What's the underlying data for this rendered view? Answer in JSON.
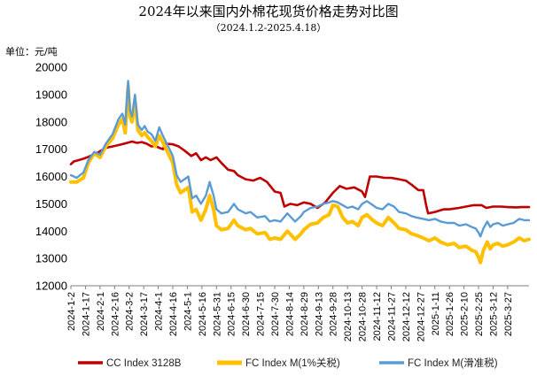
{
  "chart_data": {
    "type": "line",
    "title": "2024年以来国内外棉花现货价格走势对比图",
    "subtitle": "（2024.1.2-2025.4.18）",
    "unit_label": "单位：元/吨",
    "ylim": [
      12000,
      20000
    ],
    "y_ticks": [
      "20000",
      "19000",
      "18000",
      "17000",
      "16000",
      "15000",
      "14000",
      "13000",
      "12000"
    ],
    "y_tick_values": [
      20000,
      19000,
      18000,
      17000,
      16000,
      15000,
      14000,
      13000,
      12000
    ],
    "x_tick_labels": [
      "2024-1-2",
      "2024-1-17",
      "2024-2-1",
      "2024-2-16",
      "2024-3-2",
      "2024-3-17",
      "2024-4-1",
      "2024-4-16",
      "2024-5-1",
      "2024-5-16",
      "2024-5-31",
      "2024-6-15",
      "2024-6-30",
      "2024-7-15",
      "2024-7-30",
      "2024-8-14",
      "2024-8-29",
      "2024-9-13",
      "2024-9-28",
      "2024-10-13",
      "2024-10-28",
      "2024-11-12",
      "2024-11-27",
      "2024-12-12",
      "2024-12-27",
      "2025-1-11",
      "2025-1-26",
      "2025-2-10",
      "2025-2-25",
      "2025-3-12",
      "2025-3-27"
    ],
    "x_start": "2024-01-02",
    "x_end": "2025-04-18",
    "grid": false,
    "legend_position": "bottom",
    "series": [
      {
        "name": "CC Index 3128B",
        "color": "#c00000",
        "points": [
          [
            "2024-01-02",
            16450
          ],
          [
            "2024-01-05",
            16550
          ],
          [
            "2024-01-10",
            16600
          ],
          [
            "2024-01-15",
            16650
          ],
          [
            "2024-01-20",
            16720
          ],
          [
            "2024-01-25",
            16800
          ],
          [
            "2024-01-30",
            16880
          ],
          [
            "2024-02-02",
            16950
          ],
          [
            "2024-02-07",
            17050
          ],
          [
            "2024-02-14",
            17100
          ],
          [
            "2024-02-20",
            17150
          ],
          [
            "2024-02-26",
            17200
          ],
          [
            "2024-03-02",
            17250
          ],
          [
            "2024-03-05",
            17280
          ],
          [
            "2024-03-10",
            17230
          ],
          [
            "2024-03-15",
            17260
          ],
          [
            "2024-03-20",
            17200
          ],
          [
            "2024-03-25",
            17100
          ],
          [
            "2024-03-29",
            17120
          ],
          [
            "2024-04-02",
            17050
          ],
          [
            "2024-04-06",
            17000
          ],
          [
            "2024-04-08",
            17200
          ],
          [
            "2024-04-16",
            17180
          ],
          [
            "2024-04-22",
            17100
          ],
          [
            "2024-04-28",
            16950
          ],
          [
            "2024-05-05",
            16750
          ],
          [
            "2024-05-10",
            16850
          ],
          [
            "2024-05-15",
            16600
          ],
          [
            "2024-05-20",
            16700
          ],
          [
            "2024-05-25",
            16600
          ],
          [
            "2024-05-31",
            16700
          ],
          [
            "2024-06-05",
            16500
          ],
          [
            "2024-06-12",
            16250
          ],
          [
            "2024-06-18",
            16200
          ],
          [
            "2024-06-22",
            16050
          ],
          [
            "2024-06-30",
            15900
          ],
          [
            "2024-07-08",
            15850
          ],
          [
            "2024-07-15",
            15950
          ],
          [
            "2024-07-22",
            15800
          ],
          [
            "2024-07-30",
            15450
          ],
          [
            "2024-08-05",
            15400
          ],
          [
            "2024-08-09",
            14900
          ],
          [
            "2024-08-15",
            15000
          ],
          [
            "2024-08-22",
            14950
          ],
          [
            "2024-08-29",
            15050
          ],
          [
            "2024-09-05",
            15000
          ],
          [
            "2024-09-12",
            14850
          ],
          [
            "2024-09-20",
            15050
          ],
          [
            "2024-09-28",
            15400
          ],
          [
            "2024-10-05",
            15650
          ],
          [
            "2024-10-12",
            15550
          ],
          [
            "2024-10-20",
            15600
          ],
          [
            "2024-10-28",
            15450
          ],
          [
            "2024-10-31",
            15250
          ],
          [
            "2024-11-05",
            16000
          ],
          [
            "2024-11-12",
            16000
          ],
          [
            "2024-11-20",
            15950
          ],
          [
            "2024-11-27",
            15950
          ],
          [
            "2024-12-05",
            15900
          ],
          [
            "2024-12-12",
            15850
          ],
          [
            "2024-12-18",
            15700
          ],
          [
            "2024-12-25",
            15500
          ],
          [
            "2024-12-30",
            15500
          ],
          [
            "2025-01-02",
            14950
          ],
          [
            "2025-01-04",
            14650
          ],
          [
            "2025-01-11",
            14700
          ],
          [
            "2025-01-20",
            14800
          ],
          [
            "2025-01-26",
            14800
          ],
          [
            "2025-02-05",
            14850
          ],
          [
            "2025-02-12",
            14900
          ],
          [
            "2025-02-20",
            14950
          ],
          [
            "2025-02-28",
            14950
          ],
          [
            "2025-03-05",
            14850
          ],
          [
            "2025-03-12",
            14900
          ],
          [
            "2025-03-20",
            14900
          ],
          [
            "2025-03-27",
            14880
          ],
          [
            "2025-04-05",
            14870
          ],
          [
            "2025-04-10",
            14880
          ],
          [
            "2025-04-18",
            14880
          ]
        ]
      },
      {
        "name": "FC Index M(1%关税)",
        "color": "#ffc000",
        "points": [
          [
            "2024-01-02",
            15800
          ],
          [
            "2024-01-08",
            15800
          ],
          [
            "2024-01-15",
            15950
          ],
          [
            "2024-01-20",
            16500
          ],
          [
            "2024-01-26",
            16850
          ],
          [
            "2024-02-01",
            16700
          ],
          [
            "2024-02-07",
            17100
          ],
          [
            "2024-02-14",
            17400
          ],
          [
            "2024-02-20",
            17900
          ],
          [
            "2024-02-24",
            18100
          ],
          [
            "2024-02-27",
            17600
          ],
          [
            "2024-03-01",
            19300
          ],
          [
            "2024-03-03",
            18200
          ],
          [
            "2024-03-05",
            18000
          ],
          [
            "2024-03-08",
            18800
          ],
          [
            "2024-03-11",
            17700
          ],
          [
            "2024-03-15",
            17500
          ],
          [
            "2024-03-18",
            17600
          ],
          [
            "2024-03-21",
            17450
          ],
          [
            "2024-03-25",
            17300
          ],
          [
            "2024-03-29",
            17100
          ],
          [
            "2024-04-02",
            17500
          ],
          [
            "2024-04-05",
            17300
          ],
          [
            "2024-04-16",
            16500
          ],
          [
            "2024-04-20",
            15700
          ],
          [
            "2024-04-24",
            15400
          ],
          [
            "2024-04-28",
            15500
          ],
          [
            "2024-05-02",
            15600
          ],
          [
            "2024-05-06",
            14700
          ],
          [
            "2024-05-10",
            14800
          ],
          [
            "2024-05-15",
            14400
          ],
          [
            "2024-05-20",
            14800
          ],
          [
            "2024-05-24",
            15300
          ],
          [
            "2024-05-28",
            14800
          ],
          [
            "2024-05-31",
            14200
          ],
          [
            "2024-06-05",
            14050
          ],
          [
            "2024-06-12",
            14100
          ],
          [
            "2024-06-18",
            14400
          ],
          [
            "2024-06-22",
            14200
          ],
          [
            "2024-06-30",
            14050
          ],
          [
            "2024-07-05",
            14100
          ],
          [
            "2024-07-12",
            13900
          ],
          [
            "2024-07-20",
            13950
          ],
          [
            "2024-07-25",
            13700
          ],
          [
            "2024-07-30",
            13750
          ],
          [
            "2024-08-05",
            13700
          ],
          [
            "2024-08-12",
            14000
          ],
          [
            "2024-08-20",
            13700
          ],
          [
            "2024-08-26",
            13900
          ],
          [
            "2024-08-29",
            14050
          ],
          [
            "2024-09-05",
            14250
          ],
          [
            "2024-09-12",
            14300
          ],
          [
            "2024-09-18",
            14500
          ],
          [
            "2024-09-24",
            14600
          ],
          [
            "2024-09-28",
            14950
          ],
          [
            "2024-10-03",
            14900
          ],
          [
            "2024-10-08",
            14500
          ],
          [
            "2024-10-13",
            14300
          ],
          [
            "2024-10-18",
            14350
          ],
          [
            "2024-10-24",
            14200
          ],
          [
            "2024-10-28",
            14500
          ],
          [
            "2024-11-02",
            14600
          ],
          [
            "2024-11-08",
            14400
          ],
          [
            "2024-11-12",
            14300
          ],
          [
            "2024-11-18",
            14200
          ],
          [
            "2024-11-24",
            14500
          ],
          [
            "2024-11-30",
            14300
          ],
          [
            "2024-12-05",
            14100
          ],
          [
            "2024-12-12",
            14050
          ],
          [
            "2024-12-18",
            13900
          ],
          [
            "2024-12-23",
            13850
          ],
          [
            "2024-12-30",
            13750
          ],
          [
            "2025-01-05",
            13650
          ],
          [
            "2025-01-11",
            13750
          ],
          [
            "2025-01-17",
            13600
          ],
          [
            "2025-01-24",
            13500
          ],
          [
            "2025-01-31",
            13550
          ],
          [
            "2025-02-05",
            13400
          ],
          [
            "2025-02-12",
            13450
          ],
          [
            "2025-02-18",
            13300
          ],
          [
            "2025-02-22",
            13250
          ],
          [
            "2025-02-25",
            13050
          ],
          [
            "2025-02-27",
            12850
          ],
          [
            "2025-03-02",
            13300
          ],
          [
            "2025-03-06",
            13600
          ],
          [
            "2025-03-09",
            13350
          ],
          [
            "2025-03-12",
            13500
          ],
          [
            "2025-03-17",
            13550
          ],
          [
            "2025-03-22",
            13450
          ],
          [
            "2025-03-27",
            13500
          ],
          [
            "2025-04-02",
            13600
          ],
          [
            "2025-04-08",
            13750
          ],
          [
            "2025-04-13",
            13650
          ],
          [
            "2025-04-18",
            13700
          ]
        ]
      },
      {
        "name": "FC Index M(滑准税)",
        "color": "#5b9bd5",
        "points": [
          [
            "2024-01-02",
            16050
          ],
          [
            "2024-01-08",
            15950
          ],
          [
            "2024-01-15",
            16150
          ],
          [
            "2024-01-20",
            16600
          ],
          [
            "2024-01-26",
            16900
          ],
          [
            "2024-02-01",
            16800
          ],
          [
            "2024-02-07",
            17200
          ],
          [
            "2024-02-14",
            17550
          ],
          [
            "2024-02-20",
            18100
          ],
          [
            "2024-02-24",
            18300
          ],
          [
            "2024-02-27",
            17900
          ],
          [
            "2024-03-01",
            19500
          ],
          [
            "2024-03-03",
            18400
          ],
          [
            "2024-03-05",
            18200
          ],
          [
            "2024-03-08",
            19000
          ],
          [
            "2024-03-11",
            17900
          ],
          [
            "2024-03-15",
            17700
          ],
          [
            "2024-03-18",
            17850
          ],
          [
            "2024-03-21",
            17650
          ],
          [
            "2024-03-25",
            17550
          ],
          [
            "2024-03-29",
            17300
          ],
          [
            "2024-04-02",
            17800
          ],
          [
            "2024-04-05",
            17550
          ],
          [
            "2024-04-16",
            16750
          ],
          [
            "2024-04-20",
            16050
          ],
          [
            "2024-04-24",
            15800
          ],
          [
            "2024-04-28",
            15900
          ],
          [
            "2024-05-02",
            16000
          ],
          [
            "2024-05-06",
            15200
          ],
          [
            "2024-05-10",
            15300
          ],
          [
            "2024-05-15",
            15000
          ],
          [
            "2024-05-20",
            15300
          ],
          [
            "2024-05-24",
            15800
          ],
          [
            "2024-05-28",
            15300
          ],
          [
            "2024-05-31",
            14800
          ],
          [
            "2024-06-05",
            14650
          ],
          [
            "2024-06-12",
            14700
          ],
          [
            "2024-06-18",
            15000
          ],
          [
            "2024-06-22",
            14800
          ],
          [
            "2024-06-30",
            14650
          ],
          [
            "2024-07-05",
            14700
          ],
          [
            "2024-07-12",
            14500
          ],
          [
            "2024-07-20",
            14550
          ],
          [
            "2024-07-25",
            14350
          ],
          [
            "2024-07-30",
            14400
          ],
          [
            "2024-08-05",
            14350
          ],
          [
            "2024-08-12",
            14650
          ],
          [
            "2024-08-20",
            14350
          ],
          [
            "2024-08-26",
            14550
          ],
          [
            "2024-08-29",
            14700
          ],
          [
            "2024-09-05",
            14850
          ],
          [
            "2024-09-12",
            14900
          ],
          [
            "2024-09-18",
            15000
          ],
          [
            "2024-09-24",
            15050
          ],
          [
            "2024-09-28",
            15100
          ],
          [
            "2024-10-03",
            15050
          ],
          [
            "2024-10-08",
            14950
          ],
          [
            "2024-10-13",
            14850
          ],
          [
            "2024-10-18",
            14900
          ],
          [
            "2024-10-24",
            14800
          ],
          [
            "2024-10-28",
            15000
          ],
          [
            "2024-11-02",
            15100
          ],
          [
            "2024-11-08",
            14950
          ],
          [
            "2024-11-12",
            14850
          ],
          [
            "2024-11-18",
            14800
          ],
          [
            "2024-11-24",
            15000
          ],
          [
            "2024-11-30",
            14900
          ],
          [
            "2024-12-05",
            14700
          ],
          [
            "2024-12-12",
            14650
          ],
          [
            "2024-12-18",
            14550
          ],
          [
            "2024-12-23",
            14500
          ],
          [
            "2024-12-30",
            14450
          ],
          [
            "2025-01-05",
            14400
          ],
          [
            "2025-01-11",
            14450
          ],
          [
            "2025-01-17",
            14350
          ],
          [
            "2025-01-24",
            14300
          ],
          [
            "2025-01-31",
            14300
          ],
          [
            "2025-02-05",
            14200
          ],
          [
            "2025-02-12",
            14250
          ],
          [
            "2025-02-18",
            14150
          ],
          [
            "2025-02-22",
            14100
          ],
          [
            "2025-02-25",
            13950
          ],
          [
            "2025-02-27",
            13800
          ],
          [
            "2025-03-02",
            14100
          ],
          [
            "2025-03-06",
            14350
          ],
          [
            "2025-03-09",
            14150
          ],
          [
            "2025-03-12",
            14250
          ],
          [
            "2025-03-17",
            14300
          ],
          [
            "2025-03-22",
            14200
          ],
          [
            "2025-03-27",
            14250
          ],
          [
            "2025-04-02",
            14300
          ],
          [
            "2025-04-08",
            14450
          ],
          [
            "2025-04-13",
            14400
          ],
          [
            "2025-04-18",
            14400
          ]
        ]
      }
    ]
  }
}
